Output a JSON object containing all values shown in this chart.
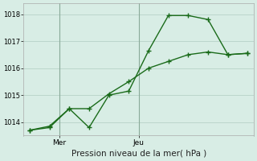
{
  "line1_x": [
    0,
    1,
    2,
    3,
    4,
    5,
    6,
    7,
    8,
    9,
    10,
    11
  ],
  "line1_y": [
    1013.7,
    1013.8,
    1014.5,
    1013.8,
    1015.0,
    1015.15,
    1016.65,
    1017.95,
    1017.95,
    1017.8,
    1016.5,
    1016.55
  ],
  "line2_x": [
    0,
    1,
    2,
    3,
    4,
    5,
    6,
    7,
    8,
    9,
    10,
    11
  ],
  "line2_y": [
    1013.7,
    1013.85,
    1014.5,
    1014.5,
    1015.05,
    1015.5,
    1016.0,
    1016.25,
    1016.5,
    1016.6,
    1016.5,
    1016.55
  ],
  "line_color": "#1a6b1a",
  "background_color": "#d8ede5",
  "grid_color": "#bcd6cc",
  "ylim": [
    1013.5,
    1018.4
  ],
  "yticks": [
    1014,
    1015,
    1016,
    1017,
    1018
  ],
  "xlim": [
    -0.3,
    11.3
  ],
  "mer_x": 1.5,
  "jeu_x": 5.5,
  "xtick_positions": [
    1.5,
    5.5
  ],
  "xtick_labels": [
    "Mer",
    "Jeu"
  ],
  "xlabel": "Pression niveau de la mer( hPa )",
  "marker": "+",
  "markersize": 4,
  "linewidth": 1.0
}
